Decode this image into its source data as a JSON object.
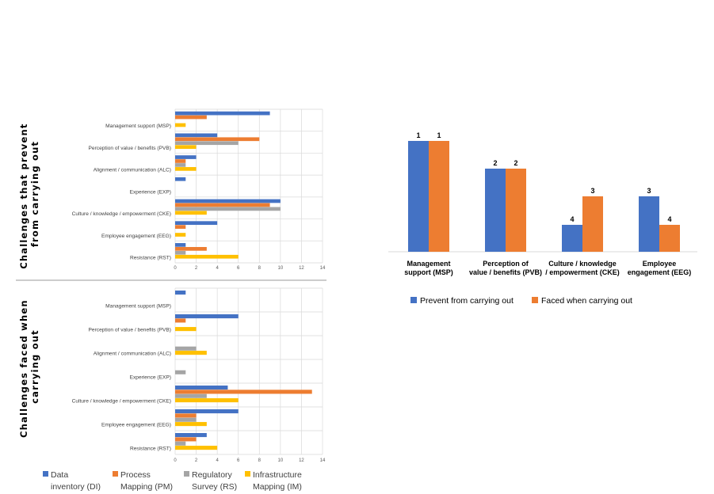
{
  "colors": {
    "blue": "#4472C4",
    "orange": "#ED7D31",
    "gray": "#A5A5A5",
    "yellow": "#FFC000",
    "grid": "#d9d9d9"
  },
  "chart_data": [
    {
      "type": "bar",
      "orientation": "horizontal",
      "title": "",
      "side_title": "Challenges that prevent from carrying out",
      "categories": [
        "Management support (MSP)",
        "Perception of value / benefits (PVB)",
        "Alignment / communication (ALC)",
        "Experience (EXP)",
        "Culture / knowledge / empowerment (CKE)",
        "Employee engagement (EEG)",
        "Resistance (RST)"
      ],
      "series": [
        {
          "name": "Data inventory (DI)",
          "values": [
            9,
            4,
            2,
            1,
            10,
            4,
            1
          ]
        },
        {
          "name": "Process Mapping (PM)",
          "values": [
            3,
            8,
            1,
            0,
            9,
            1,
            3
          ]
        },
        {
          "name": "Regulatory Survey (RS)",
          "values": [
            0,
            6,
            1,
            0,
            10,
            0,
            1
          ]
        },
        {
          "name": "Infrastructure Mapping (IM)",
          "values": [
            1,
            2,
            2,
            0,
            3,
            1,
            6
          ]
        }
      ],
      "xlim": [
        0,
        14
      ],
      "xticks": [
        "0",
        "2",
        "4",
        "6",
        "8",
        "10",
        "12",
        "14"
      ],
      "grid": true
    },
    {
      "type": "bar",
      "orientation": "horizontal",
      "title": "",
      "side_title": "Challenges faced when carrying out",
      "categories": [
        "Management support (MSP)",
        "Perception of value / benefits (PVB)",
        "Alignment / communication (ALC)",
        "Experience (EXP)",
        "Culture / knowledge / empowerment (CKE)",
        "Employee engagement (EEG)",
        "Resistance (RST)"
      ],
      "series": [
        {
          "name": "Data inventory (DI)",
          "values": [
            1,
            6,
            0,
            0,
            5,
            6,
            3
          ]
        },
        {
          "name": "Process Mapping (PM)",
          "values": [
            0,
            1,
            0,
            0,
            13,
            2,
            2
          ]
        },
        {
          "name": "Regulatory Survey (RS)",
          "values": [
            0,
            0,
            2,
            1,
            3,
            2,
            1
          ]
        },
        {
          "name": "Infrastructure Mapping (IM)",
          "values": [
            0,
            2,
            3,
            0,
            6,
            3,
            4
          ]
        }
      ],
      "xlim": [
        0,
        14
      ],
      "xticks": [
        "0",
        "2",
        "4",
        "6",
        "8",
        "10",
        "12",
        "14"
      ],
      "grid": true,
      "legend": [
        "Data inventory (DI)",
        "Process Mapping (PM)",
        "Regulatory Survey (RS)",
        "Infrastructure Mapping (IM)"
      ],
      "legend_position": "bottom"
    },
    {
      "type": "bar",
      "orientation": "vertical",
      "title": "",
      "categories": [
        "Management support (MSP)",
        "Perception of value / benefits (PVB)",
        "Culture / knowledge / empowerment (CKE)",
        "Employee engagement (EEG)"
      ],
      "series": [
        {
          "name": "Prevent from carrying out",
          "values": [
            1,
            2,
            4,
            3
          ]
        },
        {
          "name": "Faced when carrying out",
          "values": [
            1,
            2,
            3,
            4
          ]
        }
      ],
      "note": "bars are ranks (1 = highest); bar height decreases with rank",
      "axis": "hidden",
      "legend_position": "bottom"
    }
  ],
  "legend_labels": {
    "s0": [
      "Data",
      "inventory (DI)"
    ],
    "s1": [
      "Process",
      "Mapping (PM)"
    ],
    "s2": [
      "Regulatory",
      "Survey (RS)"
    ],
    "s3": [
      "Infrastructure",
      "Mapping (IM)"
    ]
  },
  "right_categories": [
    [
      "Management",
      "support (MSP)"
    ],
    [
      "Perception of",
      "value / benefits (PVB)"
    ],
    [
      "Culture / knowledge",
      "/ empowerment (CKE)"
    ],
    [
      "Employee",
      "engagement (EEG)"
    ]
  ],
  "side_titles": {
    "top": [
      "Challenges that prevent",
      "from carrying out"
    ],
    "bottom": [
      "Challenges faced when",
      "carrying out"
    ]
  }
}
